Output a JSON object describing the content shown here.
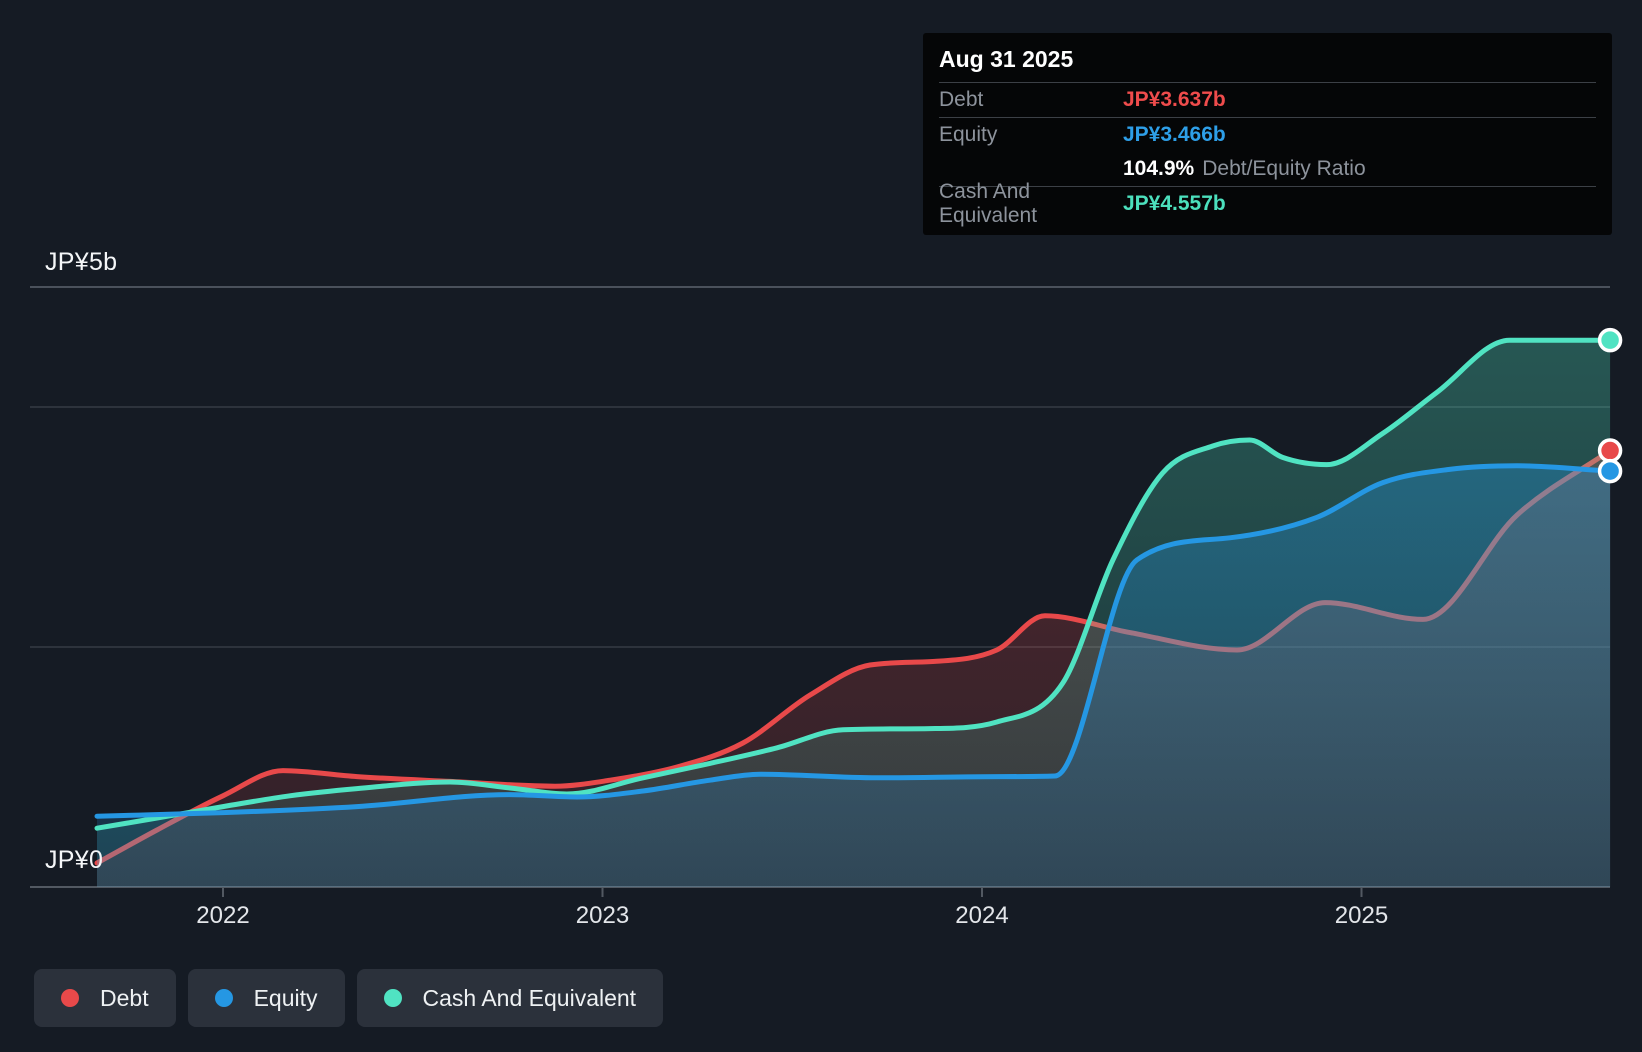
{
  "y_axis": {
    "top_label": "JP¥5b",
    "bottom_label": "JP¥0"
  },
  "x_axis": {
    "ticks": [
      "2022",
      "2023",
      "2024",
      "2025"
    ]
  },
  "legend": [
    {
      "id": "debt",
      "label": "Debt",
      "color": "#e8494a"
    },
    {
      "id": "equity",
      "label": "Equity",
      "color": "#2597e3"
    },
    {
      "id": "cash",
      "label": "Cash And Equivalent",
      "color": "#50e3c2"
    }
  ],
  "tooltip": {
    "date": "Aug 31 2025",
    "debt_label": "Debt",
    "debt_value": "JP¥3.637b",
    "equity_label": "Equity",
    "equity_value": "JP¥3.466b",
    "ratio_value": "104.9%",
    "ratio_label": "Debt/Equity Ratio",
    "cash_label": "Cash And Equivalent",
    "cash_value": "JP¥4.557b"
  },
  "chart_data": {
    "type": "area",
    "title": "Debt to Equity History and Analysis",
    "x_unit": "year",
    "y_unit": "JP¥ billions",
    "ylim": [
      0,
      5
    ],
    "grid_values": [
      5,
      4,
      2,
      0
    ],
    "x_tick_years": [
      2022,
      2023,
      2024,
      2025
    ],
    "x_range": [
      2021.668,
      2025.655
    ],
    "legend_position": "bottom-left",
    "series": [
      {
        "name": "Debt",
        "color": "#e8494a",
        "points": [
          [
            2021.668,
            0.2
          ],
          [
            2021.826,
            0.475
          ],
          [
            2022.0,
            0.76
          ],
          [
            2022.158,
            0.97
          ],
          [
            2022.353,
            0.92
          ],
          [
            2022.598,
            0.88
          ],
          [
            2022.875,
            0.84
          ],
          [
            2023.02,
            0.89
          ],
          [
            2023.196,
            1.0
          ],
          [
            2023.37,
            1.2
          ],
          [
            2023.547,
            1.6
          ],
          [
            2023.705,
            1.85
          ],
          [
            2023.876,
            1.88
          ],
          [
            2024.039,
            1.975
          ],
          [
            2024.166,
            2.26
          ],
          [
            2024.39,
            2.12
          ],
          [
            2024.672,
            1.975
          ],
          [
            2024.904,
            2.37
          ],
          [
            2025.162,
            2.23
          ],
          [
            2025.41,
            3.1
          ],
          [
            2025.655,
            3.637
          ]
        ],
        "end_value_label": "JP¥3.637b"
      },
      {
        "name": "Equity",
        "color": "#2597e3",
        "points": [
          [
            2021.668,
            0.59
          ],
          [
            2022.0,
            0.62
          ],
          [
            2022.353,
            0.67
          ],
          [
            2022.756,
            0.77
          ],
          [
            2022.933,
            0.75
          ],
          [
            2023.107,
            0.8
          ],
          [
            2023.283,
            0.89
          ],
          [
            2023.415,
            0.94
          ],
          [
            2023.723,
            0.91
          ],
          [
            2024.047,
            0.92
          ],
          [
            2024.192,
            0.925
          ],
          [
            2024.408,
            2.725
          ],
          [
            2024.653,
            2.91
          ],
          [
            2024.882,
            3.08
          ],
          [
            2025.056,
            3.37
          ],
          [
            2025.232,
            3.48
          ],
          [
            2025.41,
            3.51
          ],
          [
            2025.655,
            3.466
          ]
        ],
        "end_value_label": "JP¥3.466b"
      },
      {
        "name": "Cash And Equivalent",
        "color": "#50e3c2",
        "points": [
          [
            2021.668,
            0.49
          ],
          [
            2021.826,
            0.575
          ],
          [
            2022.0,
            0.67
          ],
          [
            2022.176,
            0.76
          ],
          [
            2022.353,
            0.82
          ],
          [
            2022.598,
            0.875
          ],
          [
            2022.756,
            0.825
          ],
          [
            2022.906,
            0.775
          ],
          [
            2023.107,
            0.91
          ],
          [
            2023.283,
            1.03
          ],
          [
            2023.46,
            1.16
          ],
          [
            2023.634,
            1.31
          ],
          [
            2023.863,
            1.32
          ],
          [
            2024.039,
            1.375
          ],
          [
            2024.213,
            1.7
          ],
          [
            2024.345,
            2.725
          ],
          [
            2024.476,
            3.45
          ],
          [
            2024.608,
            3.675
          ],
          [
            2024.705,
            3.725
          ],
          [
            2024.792,
            3.58
          ],
          [
            2024.908,
            3.52
          ],
          [
            2025.056,
            3.78
          ],
          [
            2025.198,
            4.12
          ],
          [
            2025.39,
            4.557
          ],
          [
            2025.655,
            4.557
          ]
        ],
        "end_value_label": "JP¥4.557b"
      }
    ]
  }
}
